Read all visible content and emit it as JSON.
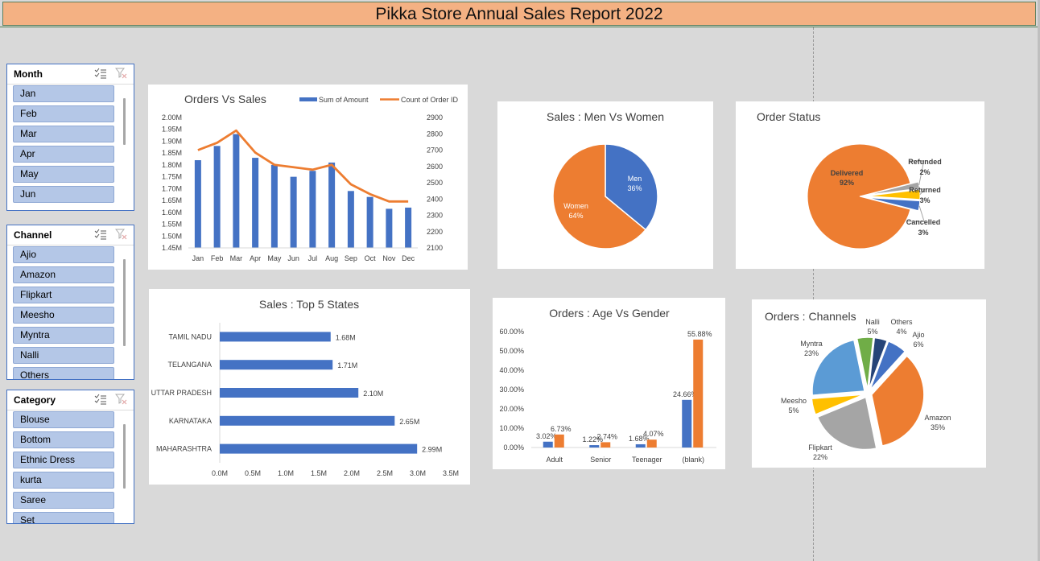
{
  "report_title": "Pikka Store Annual Sales Report 2022",
  "slicers": [
    {
      "title": "Month",
      "items": [
        "Jan",
        "Feb",
        "Mar",
        "Apr",
        "May",
        "Jun"
      ]
    },
    {
      "title": "Channel",
      "items": [
        "Ajio",
        "Amazon",
        "Flipkart",
        "Meesho",
        "Myntra",
        "Nalli",
        "Others"
      ]
    },
    {
      "title": "Category",
      "items": [
        "Blouse",
        "Bottom",
        "Ethnic Dress",
        "kurta",
        "Saree",
        "Set"
      ]
    }
  ],
  "colors": {
    "blue": "#4472c4",
    "orange": "#ed7d31",
    "gray": "#a5a5a5",
    "yellow": "#ffc000",
    "light_blue": "#5b9bd5",
    "green": "#70ad47",
    "navy": "#264478"
  },
  "chart_data": [
    {
      "id": "orders_vs_sales",
      "type": "bar+line",
      "title": "Orders Vs Sales",
      "categories": [
        "Jan",
        "Feb",
        "Mar",
        "Apr",
        "May",
        "Jun",
        "Jul",
        "Aug",
        "Sep",
        "Oct",
        "Nov",
        "Dec"
      ],
      "series": [
        {
          "name": "Sum of Amount",
          "type": "bar",
          "axis": "left",
          "values": [
            1.82,
            1.88,
            1.93,
            1.83,
            1.8,
            1.75,
            1.775,
            1.81,
            1.69,
            1.665,
            1.615,
            1.62
          ]
        },
        {
          "name": "Count of Order ID",
          "type": "line",
          "axis": "right",
          "values": [
            2700,
            2745,
            2820,
            2685,
            2610,
            2595,
            2580,
            2610,
            2490,
            2430,
            2385,
            2385
          ]
        }
      ],
      "left_axis": {
        "min": 1.45,
        "max": 2.0,
        "ticks": [
          "1.45M",
          "1.50M",
          "1.55M",
          "1.60M",
          "1.65M",
          "1.70M",
          "1.75M",
          "1.80M",
          "1.85M",
          "1.90M",
          "1.95M",
          "2.00M"
        ]
      },
      "right_axis": {
        "min": 2100,
        "max": 2900,
        "ticks": [
          "2100",
          "2200",
          "2300",
          "2400",
          "2500",
          "2600",
          "2700",
          "2800",
          "2900"
        ]
      },
      "legend": "top-right"
    },
    {
      "id": "men_vs_women",
      "type": "pie",
      "title": "Sales : Men Vs Women",
      "slices": [
        {
          "label": "Men",
          "value": 36,
          "text": "36%"
        },
        {
          "label": "Women",
          "value": 64,
          "text": "64%"
        }
      ]
    },
    {
      "id": "order_status",
      "type": "pie",
      "title": "Order Status",
      "slices": [
        {
          "label": "Delivered",
          "value": 92,
          "text": "92%"
        },
        {
          "label": "Refunded",
          "value": 2,
          "text": "2%"
        },
        {
          "label": "Returned",
          "value": 3,
          "text": "3%"
        },
        {
          "label": "Cancelled",
          "value": 3,
          "text": "3%"
        }
      ]
    },
    {
      "id": "top_states",
      "type": "bar",
      "orientation": "horizontal",
      "title": "Sales : Top 5 States",
      "categories": [
        "TAMIL NADU",
        "TELANGANA",
        "UTTAR PRADESH",
        "KARNATAKA",
        "MAHARASHTRA"
      ],
      "values": [
        1.68,
        1.71,
        2.1,
        2.65,
        2.99
      ],
      "value_labels": [
        "1.68M",
        "1.71M",
        "2.10M",
        "2.65M",
        "2.99M"
      ],
      "xlim": [
        0,
        3.5
      ],
      "ticks": [
        "0.0M",
        "0.5M",
        "1.0M",
        "1.5M",
        "2.0M",
        "2.5M",
        "3.0M",
        "3.5M"
      ]
    },
    {
      "id": "age_vs_gender",
      "type": "bar",
      "title": "Orders : Age Vs Gender",
      "categories": [
        "Adult",
        "Senior",
        "Teenager",
        "(blank)"
      ],
      "series": [
        {
          "values": [
            3.02,
            1.22,
            1.68,
            24.66
          ],
          "labels": [
            "3.02%",
            "1.22%",
            "1.68%",
            "24.66%"
          ]
        },
        {
          "values": [
            6.73,
            2.74,
            4.07,
            55.88
          ],
          "labels": [
            "6.73%",
            "2.74%",
            "4.07%",
            "55.88%"
          ]
        }
      ],
      "ylim": [
        0,
        60
      ],
      "ticks": [
        "0.00%",
        "10.00%",
        "20.00%",
        "30.00%",
        "40.00%",
        "50.00%",
        "60.00%"
      ]
    },
    {
      "id": "channels",
      "type": "pie",
      "title": "Orders : Channels",
      "slices": [
        {
          "label": "Amazon",
          "value": 35,
          "text": "35%"
        },
        {
          "label": "Flipkart",
          "value": 22,
          "text": "22%"
        },
        {
          "label": "Meesho",
          "value": 5,
          "text": "5%"
        },
        {
          "label": "Myntra",
          "value": 23,
          "text": "23%"
        },
        {
          "label": "Nalli",
          "value": 5,
          "text": "5%"
        },
        {
          "label": "Others",
          "value": 4,
          "text": "4%"
        },
        {
          "label": "Ajio",
          "value": 6,
          "text": "6%"
        }
      ]
    }
  ]
}
